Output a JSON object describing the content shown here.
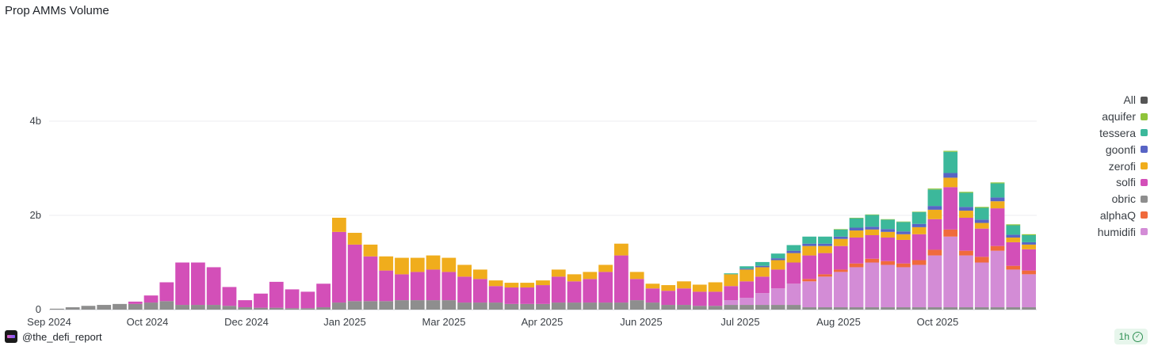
{
  "chart_data": {
    "type": "bar",
    "stacked": true,
    "title": "Prop AMMs Volume",
    "xlabel": "",
    "ylabel": "",
    "y_ticks": [
      {
        "value": 0,
        "label": "0"
      },
      {
        "value": 2000000000,
        "label": "2b"
      },
      {
        "value": 4000000000,
        "label": "4b"
      }
    ],
    "ylim": [
      0,
      5900000000
    ],
    "x_ticks": [
      "Sep 2024",
      "Oct 2024",
      "Dec 2024",
      "Jan 2025",
      "Mar 2025",
      "Apr 2025",
      "Jun 2025",
      "Jul 2025",
      "Aug 2025",
      "Oct 2025"
    ],
    "legend_position": "right",
    "grid": true,
    "legend": [
      {
        "name": "All",
        "color": "#555555"
      },
      {
        "name": "aquifer",
        "color": "#8fc43a"
      },
      {
        "name": "tessera",
        "color": "#3cb89b"
      },
      {
        "name": "goonfi",
        "color": "#5864c5"
      },
      {
        "name": "zerofi",
        "color": "#f0ad1c"
      },
      {
        "name": "solfi",
        "color": "#d34fb8"
      },
      {
        "name": "obric",
        "color": "#8e8e8e"
      },
      {
        "name": "alphaQ",
        "color": "#f06a3c"
      },
      {
        "name": "humidifi",
        "color": "#d38cd6"
      }
    ],
    "series_order_bottom_to_top": [
      "obric",
      "humidifi",
      "alphaQ",
      "solfi",
      "zerofi",
      "goonfi",
      "tessera",
      "aquifer"
    ],
    "granularity": "weekly estimate of daily bars",
    "categories": [
      "2024-09-01",
      "2024-09-08",
      "2024-09-15",
      "2024-09-22",
      "2024-09-29",
      "2024-10-06",
      "2024-10-13",
      "2024-10-20",
      "2024-10-27",
      "2024-11-03",
      "2024-11-10",
      "2024-11-17",
      "2024-11-24",
      "2024-12-01",
      "2024-12-08",
      "2024-12-15",
      "2024-12-22",
      "2024-12-29",
      "2025-01-05",
      "2025-01-12",
      "2025-01-19",
      "2025-01-26",
      "2025-02-02",
      "2025-02-09",
      "2025-02-16",
      "2025-02-23",
      "2025-03-02",
      "2025-03-09",
      "2025-03-16",
      "2025-03-23",
      "2025-03-30",
      "2025-04-06",
      "2025-04-13",
      "2025-04-20",
      "2025-04-27",
      "2025-05-04",
      "2025-05-11",
      "2025-05-18",
      "2025-05-25",
      "2025-06-01",
      "2025-06-08",
      "2025-06-15",
      "2025-06-22",
      "2025-06-29",
      "2025-07-06",
      "2025-07-13",
      "2025-07-20",
      "2025-07-27",
      "2025-08-03",
      "2025-08-10",
      "2025-08-17",
      "2025-08-24",
      "2025-08-31",
      "2025-09-07",
      "2025-09-14",
      "2025-09-21",
      "2025-09-28",
      "2025-10-05",
      "2025-10-12",
      "2025-10-19",
      "2025-10-26",
      "2025-11-02",
      "2025-11-09"
    ],
    "series": [
      {
        "name": "obric",
        "values": [
          0.02,
          0.05,
          0.08,
          0.1,
          0.12,
          0.12,
          0.15,
          0.18,
          0.1,
          0.1,
          0.1,
          0.08,
          0.05,
          0.04,
          0.04,
          0.03,
          0.03,
          0.05,
          0.15,
          0.18,
          0.18,
          0.18,
          0.2,
          0.2,
          0.2,
          0.2,
          0.15,
          0.15,
          0.15,
          0.12,
          0.12,
          0.12,
          0.15,
          0.15,
          0.15,
          0.15,
          0.15,
          0.2,
          0.15,
          0.1,
          0.1,
          0.08,
          0.08,
          0.1,
          0.1,
          0.1,
          0.1,
          0.1,
          0.05,
          0.05,
          0.05,
          0.05,
          0.05,
          0.05,
          0.05,
          0.05,
          0.05,
          0.05,
          0.05,
          0.05,
          0.05,
          0.05,
          0.05
        ]
      },
      {
        "name": "humidifi",
        "values": [
          0,
          0,
          0,
          0,
          0,
          0,
          0,
          0,
          0,
          0,
          0,
          0,
          0,
          0,
          0,
          0,
          0,
          0,
          0,
          0,
          0,
          0,
          0,
          0,
          0,
          0,
          0,
          0,
          0,
          0,
          0,
          0,
          0,
          0,
          0,
          0,
          0,
          0,
          0,
          0,
          0,
          0,
          0,
          0.1,
          0.15,
          0.25,
          0.35,
          0.45,
          0.55,
          0.65,
          0.75,
          0.85,
          0.95,
          0.9,
          0.85,
          0.9,
          1.1,
          1.5,
          1.1,
          0.95,
          1.2,
          0.8,
          0.7
        ]
      },
      {
        "name": "alphaQ",
        "values": [
          0,
          0,
          0,
          0,
          0,
          0,
          0,
          0,
          0,
          0,
          0,
          0,
          0,
          0,
          0,
          0,
          0,
          0,
          0,
          0,
          0,
          0,
          0,
          0,
          0,
          0,
          0,
          0,
          0,
          0,
          0,
          0,
          0,
          0,
          0,
          0,
          0,
          0,
          0,
          0,
          0,
          0,
          0,
          0,
          0,
          0,
          0,
          0,
          0.05,
          0.05,
          0.05,
          0.08,
          0.08,
          0.08,
          0.08,
          0.1,
          0.12,
          0.15,
          0.1,
          0.12,
          0.1,
          0.08,
          0.08
        ]
      },
      {
        "name": "solfi",
        "values": [
          0,
          0,
          0,
          0,
          0,
          0.05,
          0.15,
          0.4,
          0.9,
          0.9,
          0.8,
          0.4,
          0.15,
          0.3,
          0.55,
          0.4,
          0.35,
          0.5,
          1.5,
          1.2,
          0.95,
          0.65,
          0.55,
          0.6,
          0.65,
          0.6,
          0.55,
          0.5,
          0.35,
          0.35,
          0.35,
          0.4,
          0.55,
          0.45,
          0.5,
          0.65,
          1.0,
          0.45,
          0.3,
          0.3,
          0.35,
          0.3,
          0.3,
          0.3,
          0.35,
          0.35,
          0.4,
          0.45,
          0.5,
          0.45,
          0.5,
          0.55,
          0.5,
          0.5,
          0.5,
          0.55,
          0.65,
          0.9,
          0.7,
          0.6,
          0.8,
          0.5,
          0.45
        ]
      },
      {
        "name": "zerofi",
        "values": [
          0,
          0,
          0,
          0,
          0,
          0,
          0,
          0,
          0,
          0,
          0,
          0,
          0,
          0,
          0,
          0,
          0,
          0,
          0.3,
          0.25,
          0.25,
          0.3,
          0.35,
          0.3,
          0.3,
          0.3,
          0.25,
          0.2,
          0.12,
          0.1,
          0.1,
          0.1,
          0.15,
          0.15,
          0.15,
          0.15,
          0.25,
          0.15,
          0.1,
          0.12,
          0.15,
          0.15,
          0.2,
          0.25,
          0.25,
          0.2,
          0.2,
          0.2,
          0.2,
          0.15,
          0.15,
          0.15,
          0.12,
          0.12,
          0.12,
          0.15,
          0.2,
          0.2,
          0.15,
          0.12,
          0.15,
          0.1,
          0.1
        ]
      },
      {
        "name": "goonfi",
        "values": [
          0,
          0,
          0,
          0,
          0,
          0,
          0,
          0,
          0,
          0,
          0,
          0,
          0,
          0,
          0,
          0,
          0,
          0,
          0,
          0,
          0,
          0,
          0,
          0,
          0,
          0,
          0,
          0,
          0,
          0,
          0,
          0,
          0,
          0,
          0,
          0,
          0,
          0,
          0,
          0,
          0,
          0,
          0,
          0,
          0.02,
          0.03,
          0.04,
          0.05,
          0.05,
          0.05,
          0.05,
          0.06,
          0.06,
          0.06,
          0.06,
          0.07,
          0.08,
          0.1,
          0.08,
          0.07,
          0.08,
          0.06,
          0.05
        ]
      },
      {
        "name": "tessera",
        "values": [
          0,
          0,
          0,
          0,
          0,
          0,
          0,
          0,
          0,
          0,
          0,
          0,
          0,
          0,
          0,
          0,
          0,
          0,
          0,
          0,
          0,
          0,
          0,
          0,
          0,
          0,
          0,
          0,
          0,
          0,
          0,
          0,
          0,
          0,
          0,
          0,
          0,
          0,
          0,
          0,
          0,
          0,
          0,
          0.02,
          0.05,
          0.08,
          0.1,
          0.12,
          0.15,
          0.15,
          0.15,
          0.2,
          0.25,
          0.2,
          0.2,
          0.25,
          0.35,
          0.45,
          0.3,
          0.25,
          0.3,
          0.2,
          0.15
        ]
      },
      {
        "name": "aquifer",
        "values": [
          0,
          0,
          0,
          0,
          0,
          0,
          0,
          0,
          0,
          0,
          0,
          0,
          0,
          0,
          0,
          0,
          0,
          0,
          0,
          0,
          0,
          0,
          0,
          0,
          0,
          0,
          0,
          0,
          0,
          0,
          0,
          0,
          0,
          0,
          0,
          0,
          0,
          0,
          0,
          0,
          0,
          0,
          0,
          0,
          0,
          0,
          0,
          0,
          0,
          0,
          0.01,
          0.01,
          0.01,
          0.01,
          0.01,
          0.01,
          0.02,
          0.02,
          0.02,
          0.02,
          0.02,
          0.02,
          0.02
        ]
      }
    ],
    "value_unit": "billions"
  },
  "footer": {
    "handle": "@the_defi_report",
    "refresh_badge": "1h"
  }
}
